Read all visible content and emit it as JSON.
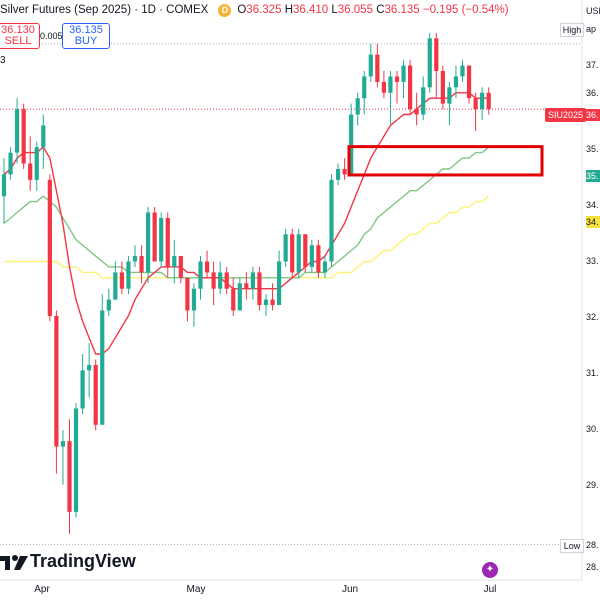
{
  "header": {
    "title": "Silver Futures (Sep 2025) · 1D · COMEX",
    "d_badge": "D",
    "open_key": "O",
    "open": "36.325",
    "high_key": "H",
    "high": "36.410",
    "low_key": "L",
    "low": "36.055",
    "close_key": "C",
    "close": "36.135",
    "change": "−0.195 (−0.54%)"
  },
  "trade": {
    "sell_price": "36.130",
    "sell_label": "SELL",
    "spread": "0.005",
    "buy_price": "36.135",
    "buy_label": "BUY"
  },
  "legend_fragment": "3",
  "branding": {
    "logo_text": "TradingView",
    "logo_icon": "tradingview-logo-icon"
  },
  "price_axis": {
    "currency": "USD",
    "ticks": [
      "37.",
      "36.",
      "35.",
      "34.",
      "33.",
      "32.",
      "31.",
      "30.",
      "29.",
      "28."
    ],
    "high_label": "High",
    "low_label": "Low",
    "high_value": "ap",
    "low_value": "28."
  },
  "tags": {
    "symbol": "SIU2025",
    "last_price": "36.",
    "ma_fast": "35.",
    "ma_slow": "34."
  },
  "colors": {
    "up": "#22ab94",
    "down": "#f23645",
    "ma_red": "#f23645",
    "ma_green": "#81c784",
    "ma_yellow": "#fff176",
    "highlight_box": "#e00000"
  },
  "x_axis": {
    "labels": [
      "Apr",
      "May",
      "Jun",
      "Jul"
    ]
  },
  "chart_data": {
    "type": "candlestick",
    "title": "Silver Futures (Sep 2025)",
    "timeframe": "1D",
    "exchange": "COMEX",
    "ylim": [
      28.0,
      37.7
    ],
    "candles": [
      [
        34.5,
        35.2,
        34.0,
        34.9
      ],
      [
        34.9,
        35.4,
        34.8,
        35.3
      ],
      [
        35.3,
        36.3,
        35.1,
        36.1
      ],
      [
        36.1,
        36.2,
        35.0,
        35.1
      ],
      [
        35.1,
        35.6,
        34.6,
        34.8
      ],
      [
        34.8,
        35.5,
        34.6,
        35.4
      ],
      [
        35.4,
        36.0,
        35.0,
        35.8
      ],
      [
        34.8,
        34.9,
        32.2,
        32.3
      ],
      [
        32.3,
        32.4,
        29.4,
        29.9
      ],
      [
        29.9,
        30.2,
        29.2,
        30.0
      ],
      [
        30.0,
        30.4,
        28.3,
        28.7
      ],
      [
        28.7,
        30.7,
        28.6,
        30.6
      ],
      [
        30.6,
        31.6,
        30.5,
        31.3
      ],
      [
        31.3,
        31.8,
        30.8,
        31.4
      ],
      [
        31.4,
        31.5,
        30.2,
        30.3
      ],
      [
        30.3,
        32.7,
        30.3,
        32.4
      ],
      [
        32.4,
        32.8,
        32.3,
        32.6
      ],
      [
        32.6,
        33.3,
        32.6,
        33.1
      ],
      [
        33.1,
        33.3,
        32.7,
        32.8
      ],
      [
        32.8,
        33.4,
        32.7,
        33.3
      ],
      [
        33.3,
        33.6,
        33.2,
        33.4
      ],
      [
        33.4,
        33.6,
        32.9,
        33.1
      ],
      [
        33.1,
        34.3,
        32.9,
        34.2
      ],
      [
        34.2,
        34.3,
        33.3,
        33.3
      ],
      [
        33.3,
        34.2,
        33.2,
        34.1
      ],
      [
        34.1,
        34.2,
        33.0,
        33.2
      ],
      [
        33.2,
        33.7,
        32.9,
        33.4
      ],
      [
        33.4,
        33.4,
        32.9,
        33.0
      ],
      [
        33.0,
        33.0,
        32.2,
        32.4
      ],
      [
        32.4,
        32.9,
        32.1,
        32.8
      ],
      [
        32.8,
        33.4,
        32.6,
        33.3
      ],
      [
        33.3,
        33.5,
        33.0,
        33.1
      ],
      [
        33.1,
        33.3,
        32.5,
        32.8
      ],
      [
        32.8,
        33.3,
        32.7,
        33.1
      ],
      [
        33.1,
        33.2,
        32.7,
        32.8
      ],
      [
        32.8,
        33.0,
        32.3,
        32.4
      ],
      [
        32.4,
        33.0,
        32.4,
        32.9
      ],
      [
        32.9,
        33.1,
        32.6,
        32.8
      ],
      [
        32.8,
        33.2,
        32.6,
        33.1
      ],
      [
        33.1,
        33.2,
        32.4,
        32.5
      ],
      [
        32.5,
        32.7,
        32.3,
        32.6
      ],
      [
        32.6,
        32.9,
        32.4,
        32.5
      ],
      [
        32.5,
        33.5,
        32.5,
        33.3
      ],
      [
        33.3,
        33.9,
        33.2,
        33.8
      ],
      [
        33.8,
        33.9,
        33.0,
        33.1
      ],
      [
        33.1,
        33.9,
        33.0,
        33.8
      ],
      [
        33.8,
        33.8,
        33.1,
        33.2
      ],
      [
        33.2,
        33.7,
        33.1,
        33.6
      ],
      [
        33.6,
        33.7,
        33.0,
        33.1
      ],
      [
        33.1,
        33.4,
        33.0,
        33.3
      ],
      [
        33.3,
        34.9,
        33.2,
        34.8
      ],
      [
        34.8,
        35.1,
        34.7,
        35.0
      ],
      [
        35.0,
        35.2,
        34.8,
        34.9
      ],
      [
        34.9,
        36.2,
        34.9,
        36.0
      ],
      [
        36.0,
        36.4,
        35.8,
        36.3
      ],
      [
        36.3,
        36.8,
        36.0,
        36.7
      ],
      [
        36.7,
        37.3,
        36.6,
        37.1
      ],
      [
        37.1,
        37.3,
        36.5,
        36.6
      ],
      [
        36.6,
        36.8,
        36.3,
        36.4
      ],
      [
        36.4,
        36.8,
        35.8,
        36.7
      ],
      [
        36.7,
        36.8,
        36.2,
        36.6
      ],
      [
        36.6,
        37.0,
        36.3,
        36.9
      ],
      [
        36.9,
        37.0,
        36.0,
        36.1
      ],
      [
        36.1,
        36.4,
        35.8,
        36.0
      ],
      [
        36.0,
        36.7,
        35.9,
        36.5
      ],
      [
        36.5,
        37.5,
        36.4,
        37.4
      ],
      [
        37.4,
        37.5,
        36.3,
        36.8
      ],
      [
        36.8,
        36.9,
        36.1,
        36.2
      ],
      [
        36.2,
        36.6,
        35.8,
        36.5
      ],
      [
        36.5,
        36.9,
        36.3,
        36.7
      ],
      [
        36.7,
        37.0,
        36.6,
        36.9
      ],
      [
        36.9,
        36.9,
        36.2,
        36.3
      ],
      [
        36.3,
        36.4,
        35.7,
        36.1
      ],
      [
        36.1,
        36.5,
        35.9,
        36.4
      ],
      [
        36.4,
        36.5,
        36.0,
        36.1
      ]
    ],
    "moving_averages": [
      {
        "color": "red",
        "values": [
          34.9,
          35.0,
          35.2,
          35.3,
          35.3,
          35.3,
          35.4,
          35.2,
          34.6,
          34.0,
          33.2,
          32.6,
          32.2,
          31.9,
          31.6,
          31.6,
          31.7,
          31.9,
          32.1,
          32.3,
          32.6,
          32.8,
          33.0,
          33.1,
          33.2,
          33.2,
          33.2,
          33.2,
          33.1,
          33.1,
          33.0,
          33.0,
          33.0,
          33.0,
          32.9,
          32.8,
          32.8,
          32.8,
          32.8,
          32.8,
          32.8,
          32.8,
          32.8,
          32.9,
          33.0,
          33.1,
          33.2,
          33.3,
          33.3,
          33.4,
          33.6,
          33.8,
          34.0,
          34.3,
          34.6,
          34.9,
          35.2,
          35.4,
          35.6,
          35.8,
          35.9,
          36.0,
          36.0,
          36.1,
          36.2,
          36.3,
          36.3,
          36.3,
          36.3,
          36.4,
          36.4,
          36.4,
          36.3,
          36.3,
          36.3
        ]
      },
      {
        "color": "green",
        "values": [
          34.0,
          34.1,
          34.2,
          34.3,
          34.4,
          34.4,
          34.5,
          34.4,
          34.3,
          34.1,
          33.9,
          33.7,
          33.6,
          33.5,
          33.4,
          33.3,
          33.2,
          33.2,
          33.2,
          33.1,
          33.1,
          33.1,
          33.1,
          33.1,
          33.1,
          33.0,
          33.0,
          33.0,
          33.0,
          33.0,
          33.0,
          33.0,
          33.0,
          33.0,
          33.0,
          33.0,
          33.0,
          33.0,
          33.0,
          33.0,
          33.0,
          33.0,
          33.0,
          33.0,
          33.0,
          33.0,
          33.1,
          33.1,
          33.1,
          33.1,
          33.2,
          33.3,
          33.4,
          33.5,
          33.6,
          33.8,
          33.9,
          34.1,
          34.2,
          34.3,
          34.4,
          34.5,
          34.6,
          34.6,
          34.7,
          34.8,
          34.9,
          35.0,
          35.0,
          35.1,
          35.2,
          35.2,
          35.3,
          35.3,
          35.4
        ]
      },
      {
        "color": "yellow",
        "values": [
          33.3,
          33.3,
          33.3,
          33.3,
          33.3,
          33.3,
          33.3,
          33.3,
          33.3,
          33.2,
          33.2,
          33.2,
          33.1,
          33.1,
          33.1,
          33.0,
          33.0,
          33.0,
          33.0,
          33.0,
          33.0,
          33.0,
          33.0,
          33.0,
          33.0,
          33.0,
          33.0,
          33.0,
          33.0,
          33.0,
          33.0,
          33.0,
          33.0,
          33.0,
          33.0,
          33.0,
          33.0,
          33.0,
          33.0,
          33.0,
          33.0,
          33.0,
          33.0,
          33.0,
          33.0,
          33.0,
          33.0,
          33.0,
          33.0,
          33.0,
          33.0,
          33.1,
          33.1,
          33.1,
          33.2,
          33.3,
          33.3,
          33.4,
          33.5,
          33.5,
          33.6,
          33.7,
          33.8,
          33.8,
          33.9,
          34.0,
          34.0,
          34.1,
          34.2,
          34.2,
          34.3,
          34.3,
          34.4,
          34.4,
          34.5
        ]
      }
    ],
    "high_line": 37.3,
    "low_line": 28.1,
    "highlight_zone": [
      35.0,
      35.3
    ],
    "grid": false
  }
}
